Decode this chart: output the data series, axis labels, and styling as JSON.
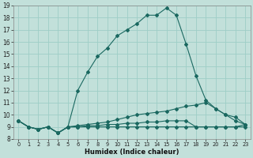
{
  "xlabel": "Humidex (Indice chaleur)",
  "bg_color": "#c2e0da",
  "grid_color": "#9ecec6",
  "line_color": "#1a6860",
  "xlim": [
    -0.5,
    23.5
  ],
  "ylim": [
    8,
    19
  ],
  "yticks": [
    8,
    9,
    10,
    11,
    12,
    13,
    14,
    15,
    16,
    17,
    18,
    19
  ],
  "xticks": [
    0,
    1,
    2,
    3,
    4,
    5,
    6,
    7,
    8,
    9,
    10,
    11,
    12,
    13,
    14,
    15,
    16,
    17,
    18,
    19,
    20,
    21,
    22,
    23
  ],
  "line1_x": [
    0,
    1,
    2,
    3,
    4,
    5,
    6,
    7,
    8,
    9,
    10,
    11,
    12,
    13,
    14,
    15,
    16,
    17,
    18,
    19,
    20,
    21,
    22,
    23
  ],
  "line1_y": [
    9.5,
    9.0,
    8.8,
    9.0,
    8.5,
    9.0,
    12.0,
    13.5,
    14.8,
    15.5,
    16.5,
    17.0,
    17.5,
    18.2,
    18.2,
    18.8,
    18.2,
    15.8,
    13.2,
    11.2,
    10.5,
    10.0,
    9.8,
    9.2
  ],
  "line2_x": [
    0,
    1,
    2,
    3,
    4,
    5,
    6,
    7,
    8,
    9,
    10,
    11,
    12,
    13,
    14,
    15,
    16,
    17,
    18,
    19,
    20,
    21,
    22,
    23
  ],
  "line2_y": [
    9.5,
    9.0,
    8.8,
    9.0,
    8.5,
    9.0,
    9.1,
    9.2,
    9.3,
    9.4,
    9.6,
    9.8,
    10.0,
    10.1,
    10.2,
    10.3,
    10.5,
    10.7,
    10.8,
    11.0,
    10.5,
    10.0,
    9.5,
    9.2
  ],
  "line3_x": [
    0,
    1,
    2,
    3,
    4,
    5,
    6,
    7,
    8,
    9,
    10,
    11,
    12,
    13,
    14,
    15,
    16,
    17,
    18,
    19,
    20,
    21,
    22,
    23
  ],
  "line3_y": [
    9.5,
    9.0,
    8.8,
    9.0,
    8.5,
    9.0,
    9.0,
    9.1,
    9.1,
    9.2,
    9.2,
    9.3,
    9.3,
    9.4,
    9.4,
    9.5,
    9.5,
    9.5,
    9.0,
    9.0,
    9.0,
    9.0,
    9.0,
    9.2
  ],
  "line4_x": [
    0,
    1,
    2,
    3,
    4,
    5,
    6,
    7,
    8,
    9,
    10,
    11,
    12,
    13,
    14,
    15,
    16,
    17,
    18,
    19,
    20,
    21,
    22,
    23
  ],
  "line4_y": [
    9.5,
    9.0,
    8.8,
    9.0,
    8.5,
    9.0,
    9.0,
    9.0,
    9.0,
    9.0,
    9.0,
    9.0,
    9.0,
    9.0,
    9.0,
    9.0,
    9.0,
    9.0,
    9.0,
    9.0,
    9.0,
    9.0,
    9.0,
    9.0
  ]
}
